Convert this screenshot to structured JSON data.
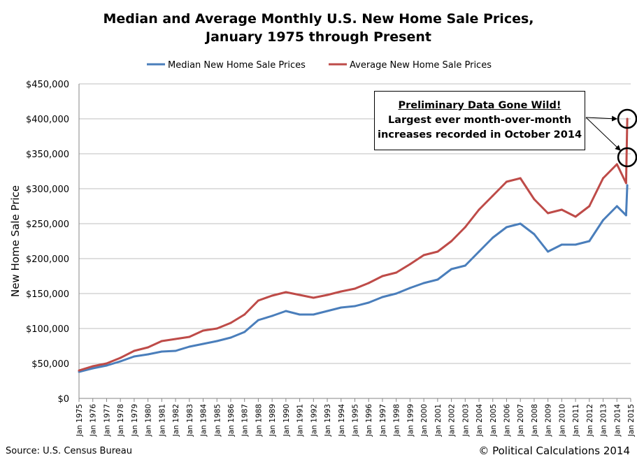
{
  "title_line1": "Median and Average Monthly U.S. New Home Sale Prices,",
  "title_line2": "January 1975 through Present",
  "source": "Source: U.S. Census Bureau",
  "copyright": "© Political Calculations 2014",
  "annotation": {
    "heading": "Preliminary Data Gone Wild!",
    "line1": "Largest ever month-over-month",
    "line2": "increases recorded in October 2014"
  },
  "chart_data": {
    "type": "line",
    "title": "Median and Average Monthly U.S. New Home Sale Prices, January 1975 through Present",
    "ylabel": "New Home Sale Price",
    "xlabel": "",
    "ylim": [
      0,
      450000
    ],
    "yticks": [
      "$0",
      "$50,000",
      "$100,000",
      "$150,000",
      "$200,000",
      "$250,000",
      "$300,000",
      "$350,000",
      "$400,000",
      "$450,000"
    ],
    "xticks": [
      "Jan 1975",
      "Jan 1976",
      "Jan 1977",
      "Jan 1978",
      "Jan 1979",
      "Jan 1980",
      "Jan 1981",
      "Jan 1982",
      "Jan 1983",
      "Jan 1984",
      "Jan 1985",
      "Jan 1986",
      "Jan 1987",
      "Jan 1988",
      "Jan 1989",
      "Jan 1990",
      "Jan 1991",
      "Jan 1992",
      "Jan 1993",
      "Jan 1994",
      "Jan 1995",
      "Jan 1996",
      "Jan 1997",
      "Jan 1998",
      "Jan 1999",
      "Jan 2000",
      "Jan 2001",
      "Jan 2002",
      "Jan 2003",
      "Jan 2004",
      "Jan 2005",
      "Jan 2006",
      "Jan 2007",
      "Jan 2008",
      "Jan 2009",
      "Jan 2010",
      "Jan 2011",
      "Jan 2012",
      "Jan 2013",
      "Jan 2014",
      "Jan 2015"
    ],
    "grid": true,
    "legend": "top",
    "x": [
      "1975-01",
      "1976-01",
      "1977-01",
      "1978-01",
      "1979-01",
      "1980-01",
      "1981-01",
      "1982-01",
      "1983-01",
      "1984-01",
      "1985-01",
      "1986-01",
      "1987-01",
      "1988-01",
      "1989-01",
      "1990-01",
      "1991-01",
      "1992-01",
      "1993-01",
      "1994-01",
      "1995-01",
      "1996-01",
      "1997-01",
      "1998-01",
      "1999-01",
      "2000-01",
      "2001-01",
      "2002-01",
      "2003-01",
      "2004-01",
      "2005-01",
      "2006-01",
      "2007-01",
      "2008-01",
      "2009-01",
      "2010-01",
      "2011-01",
      "2012-01",
      "2013-01",
      "2014-01",
      "2014-09",
      "2014-10"
    ],
    "series": [
      {
        "name": "Median New Home Sale Prices",
        "color": "#4a7ebb",
        "values": [
          38000,
          43000,
          47000,
          53000,
          60000,
          63000,
          67000,
          68000,
          74000,
          78000,
          82000,
          87000,
          95000,
          112000,
          118000,
          125000,
          120000,
          120000,
          125000,
          130000,
          132000,
          137000,
          145000,
          150000,
          158000,
          165000,
          170000,
          185000,
          190000,
          210000,
          230000,
          245000,
          250000,
          235000,
          210000,
          220000,
          220000,
          225000,
          255000,
          275000,
          262000,
          305000
        ]
      },
      {
        "name": "Average New Home Sale Prices",
        "color": "#be4b48",
        "values": [
          40000,
          46000,
          50000,
          58000,
          68000,
          73000,
          82000,
          85000,
          88000,
          97000,
          100000,
          108000,
          120000,
          140000,
          147000,
          152000,
          148000,
          144000,
          148000,
          153000,
          157000,
          165000,
          175000,
          180000,
          192000,
          205000,
          210000,
          225000,
          245000,
          270000,
          290000,
          310000,
          315000,
          285000,
          265000,
          270000,
          260000,
          275000,
          315000,
          335000,
          308000,
          400000
        ]
      }
    ]
  }
}
